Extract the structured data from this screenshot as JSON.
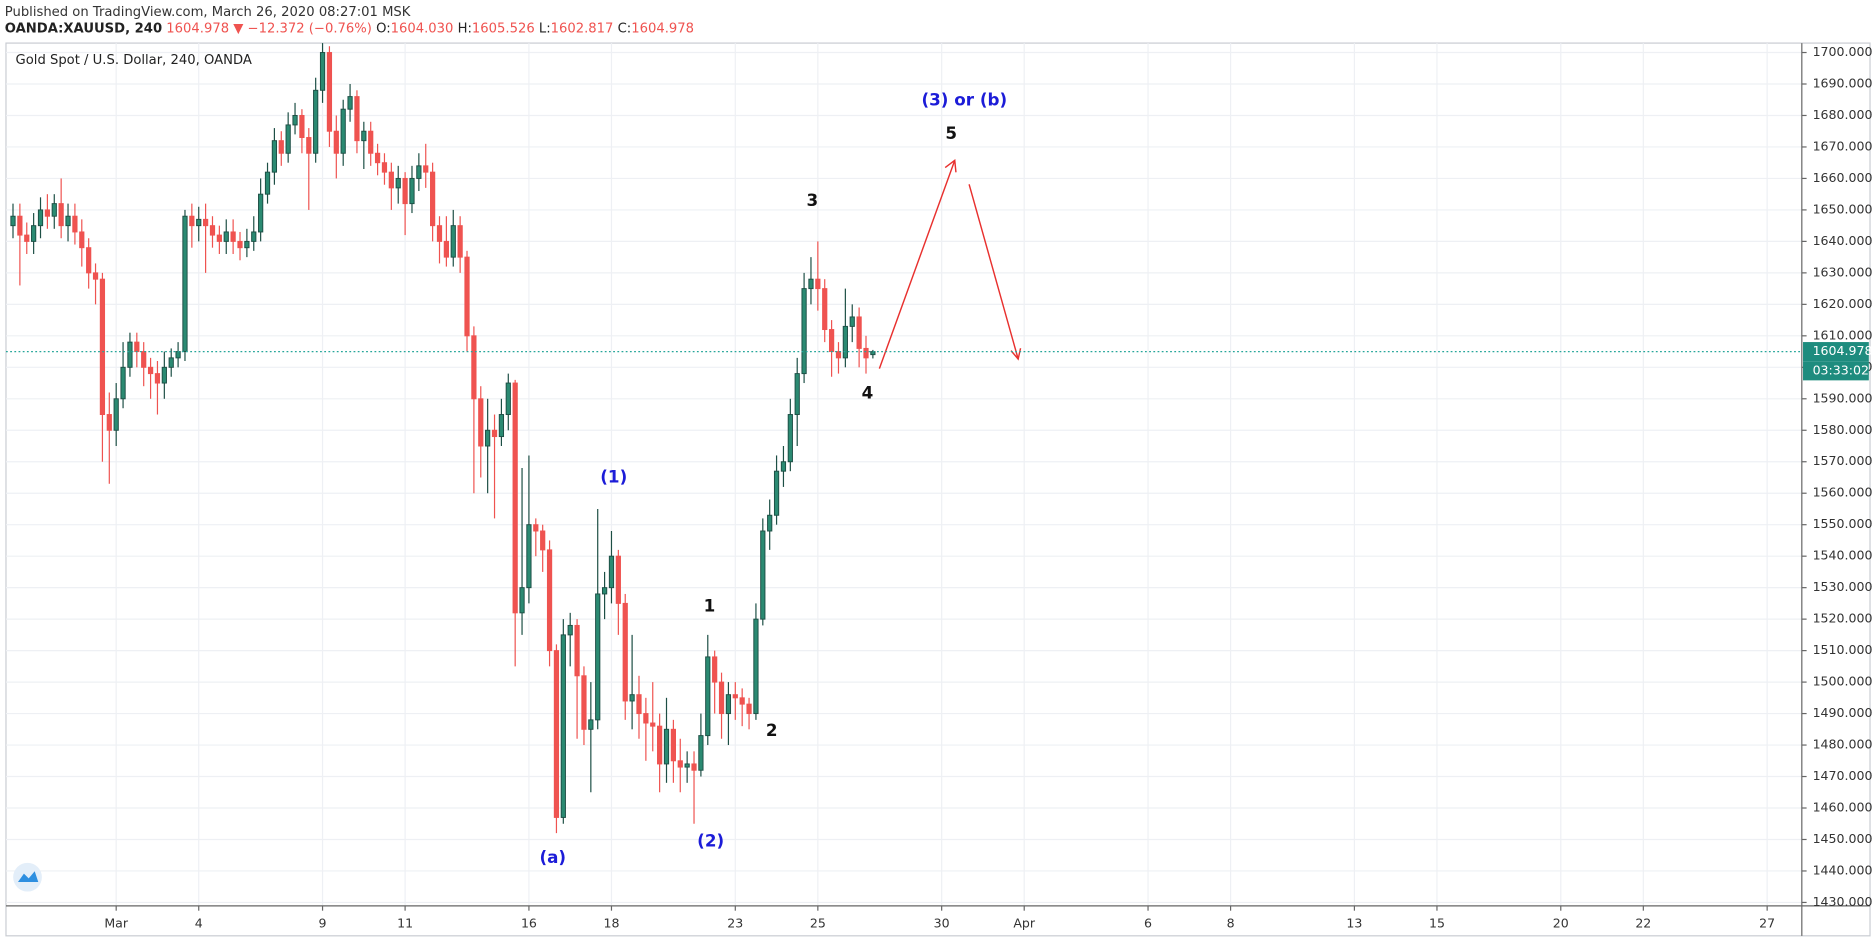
{
  "header": {
    "published": "Published on TradingView.com, March 26, 2020 08:27:01 MSK",
    "symbol": "OANDA:XAUUSD, 240",
    "quote": "1604.978 ▼ −12.372 (−0.76%)",
    "ohlc": [
      {
        "label": "O:",
        "value": "1604.030"
      },
      {
        "label": "H:",
        "value": "1605.526"
      },
      {
        "label": "L:",
        "value": "1602.817"
      },
      {
        "label": "C:",
        "value": "1604.978"
      }
    ]
  },
  "chart_data": {
    "type": "candlestick",
    "title": "Gold Spot / U.S. Dollar, 240, OANDA",
    "up_color": "#2b8a72",
    "up_border": "#1d4f45",
    "down_color": "#ef5350",
    "last_line_color": "#26a69a",
    "grid": true,
    "countdown": "03:33:02",
    "x": [
      -15,
      -14,
      -13,
      -12,
      -11,
      -10,
      -9,
      -8,
      -7,
      -6,
      -5,
      -4,
      -3,
      -2,
      -1,
      0,
      1,
      2,
      3,
      4,
      5,
      6,
      7,
      8,
      9,
      10,
      11,
      12,
      13,
      14,
      15,
      16,
      17,
      18,
      19,
      20,
      21,
      22,
      23,
      24,
      25,
      26,
      27,
      28,
      29,
      30,
      31,
      32,
      33,
      34,
      35,
      36,
      37,
      38,
      39,
      40,
      41,
      42,
      43,
      44,
      45,
      46,
      47,
      48,
      49,
      50,
      51,
      52,
      53,
      54,
      55,
      56,
      57,
      58,
      59,
      60,
      61,
      62,
      63,
      64,
      65,
      66,
      67,
      68,
      69,
      70,
      71,
      72,
      73,
      74,
      75,
      76,
      77,
      78,
      79,
      80,
      81,
      82,
      83,
      84,
      85,
      86,
      87,
      88,
      89,
      90,
      91,
      92,
      93,
      94,
      95,
      96,
      97,
      98,
      99,
      100,
      101,
      102,
      103,
      104,
      105,
      106,
      107,
      108,
      109,
      110
    ],
    "open": [
      1645,
      1648,
      1642,
      1640,
      1645,
      1650,
      1648,
      1652,
      1645,
      1648,
      1643,
      1638,
      1630,
      1628,
      1585,
      1580,
      1590,
      1600,
      1608,
      1605,
      1600,
      1598,
      1595,
      1600,
      1603,
      1605,
      1648,
      1645,
      1647,
      1645,
      1642,
      1640,
      1643,
      1640,
      1638,
      1640,
      1643,
      1655,
      1662,
      1672,
      1668,
      1677,
      1680,
      1673,
      1668,
      1688,
      1700,
      1675,
      1668,
      1682,
      1686,
      1672,
      1675,
      1668,
      1665,
      1662,
      1657,
      1660,
      1652,
      1660,
      1664,
      1662,
      1645,
      1640,
      1635,
      1645,
      1635,
      1610,
      1590,
      1575,
      1580,
      1578,
      1585,
      1595,
      1522,
      1530,
      1550,
      1548,
      1542,
      1510,
      1457,
      1515,
      1518,
      1502,
      1485,
      1488,
      1528,
      1530,
      1540,
      1525,
      1494,
      1496,
      1490,
      1487,
      1486,
      1474,
      1485,
      1475,
      1473,
      1474,
      1472,
      1483,
      1508,
      1500,
      1490,
      1496,
      1495,
      1493,
      1490,
      1520,
      1548,
      1553,
      1567,
      1570,
      1585,
      1598,
      1625,
      1628,
      1625,
      1612,
      1605,
      1603,
      1613,
      1616,
      1606,
      1604.03
    ],
    "high": [
      1652,
      1652,
      1646,
      1649,
      1654,
      1655,
      1655,
      1660,
      1652,
      1652,
      1647,
      1641,
      1633,
      1630,
      1592,
      1595,
      1608,
      1611,
      1611,
      1608,
      1603,
      1602,
      1605,
      1606,
      1608,
      1650,
      1652,
      1651,
      1652,
      1648,
      1645,
      1647,
      1647,
      1643,
      1644,
      1648,
      1660,
      1665,
      1676,
      1675,
      1681,
      1684,
      1682,
      1676,
      1692,
      1703,
      1702,
      1680,
      1685,
      1690,
      1688,
      1678,
      1678,
      1671,
      1668,
      1665,
      1664,
      1662,
      1664,
      1668,
      1671,
      1665,
      1648,
      1648,
      1650,
      1648,
      1637,
      1613,
      1594,
      1590,
      1585,
      1590,
      1598,
      1596,
      1568,
      1572,
      1552,
      1550,
      1545,
      1512,
      1520,
      1522,
      1520,
      1505,
      1500,
      1555,
      1535,
      1548,
      1542,
      1528,
      1515,
      1502,
      1495,
      1500,
      1490,
      1495,
      1488,
      1482,
      1478,
      1478,
      1490,
      1515,
      1510,
      1503,
      1500,
      1500,
      1498,
      1495,
      1525,
      1552,
      1558,
      1572,
      1575,
      1590,
      1603,
      1630,
      1635,
      1640,
      1628,
      1615,
      1608,
      1625,
      1620,
      1619,
      1610,
      1605.526
    ],
    "low": [
      1641,
      1626,
      1636,
      1636,
      1641,
      1644,
      1644,
      1641,
      1640,
      1639,
      1632,
      1625,
      1620,
      1570,
      1563,
      1575,
      1587,
      1597,
      1600,
      1594,
      1590,
      1585,
      1590,
      1597,
      1600,
      1602,
      1638,
      1640,
      1630,
      1638,
      1636,
      1636,
      1636,
      1634,
      1635,
      1637,
      1640,
      1652,
      1658,
      1664,
      1665,
      1674,
      1668,
      1650,
      1665,
      1684,
      1670,
      1660,
      1664,
      1678,
      1668,
      1663,
      1664,
      1661,
      1658,
      1650,
      1652,
      1642,
      1649,
      1656,
      1657,
      1640,
      1633,
      1632,
      1632,
      1630,
      1605,
      1560,
      1565,
      1560,
      1552,
      1575,
      1580,
      1505,
      1515,
      1525,
      1540,
      1535,
      1505,
      1452,
      1455,
      1505,
      1482,
      1480,
      1465,
      1485,
      1520,
      1525,
      1515,
      1488,
      1485,
      1482,
      1475,
      1478,
      1465,
      1468,
      1468,
      1465,
      1468,
      1455,
      1470,
      1480,
      1490,
      1482,
      1480,
      1488,
      1486,
      1485,
      1488,
      1518,
      1542,
      1550,
      1562,
      1567,
      1575,
      1595,
      1620,
      1618,
      1608,
      1597,
      1598,
      1600,
      1608,
      1600,
      1598,
      1602.817
    ],
    "close": [
      1648,
      1642,
      1640,
      1645,
      1650,
      1648,
      1652,
      1645,
      1648,
      1643,
      1638,
      1630,
      1628,
      1585,
      1580,
      1590,
      1600,
      1608,
      1605,
      1600,
      1598,
      1595,
      1600,
      1603,
      1605,
      1648,
      1645,
      1647,
      1645,
      1642,
      1640,
      1643,
      1640,
      1638,
      1640,
      1643,
      1655,
      1662,
      1672,
      1668,
      1677,
      1680,
      1673,
      1668,
      1688,
      1700,
      1675,
      1668,
      1682,
      1686,
      1672,
      1675,
      1668,
      1665,
      1662,
      1657,
      1660,
      1652,
      1660,
      1664,
      1662,
      1645,
      1640,
      1635,
      1645,
      1635,
      1610,
      1590,
      1575,
      1580,
      1578,
      1585,
      1595,
      1522,
      1530,
      1550,
      1548,
      1542,
      1510,
      1457,
      1515,
      1518,
      1502,
      1485,
      1488,
      1528,
      1530,
      1540,
      1525,
      1494,
      1496,
      1490,
      1487,
      1486,
      1474,
      1485,
      1475,
      1473,
      1474,
      1472,
      1483,
      1508,
      1500,
      1490,
      1496,
      1495,
      1493,
      1490,
      1520,
      1548,
      1553,
      1567,
      1570,
      1585,
      1598,
      1625,
      1628,
      1625,
      1612,
      1605,
      1603,
      1613,
      1616,
      1606,
      1603,
      1604.978
    ],
    "xlim": [
      -16.02,
      245.04
    ],
    "xticks": [
      {
        "value": 0,
        "label": "Mar"
      },
      {
        "value": 12,
        "label": "4"
      },
      {
        "value": 30,
        "label": "9"
      },
      {
        "value": 42,
        "label": "11"
      },
      {
        "value": 60,
        "label": "16"
      },
      {
        "value": 72,
        "label": "18"
      },
      {
        "value": 90,
        "label": "23"
      },
      {
        "value": 102,
        "label": "25"
      },
      {
        "value": 120,
        "label": "30"
      },
      {
        "value": 132,
        "label": "Apr"
      },
      {
        "value": 150,
        "label": "6"
      },
      {
        "value": 162,
        "label": "8"
      },
      {
        "value": 180,
        "label": "13"
      },
      {
        "value": 192,
        "label": "15"
      },
      {
        "value": 210,
        "label": "20"
      },
      {
        "value": 222,
        "label": "22"
      },
      {
        "value": 240,
        "label": "27"
      }
    ],
    "ylim": [
      1428.9,
      1703.0
    ],
    "yticks": [
      {
        "value": 1430,
        "label": "1430.000"
      },
      {
        "value": 1440,
        "label": "1440.000"
      },
      {
        "value": 1450,
        "label": "1450.000"
      },
      {
        "value": 1460,
        "label": "1460.000"
      },
      {
        "value": 1470,
        "label": "1470.000"
      },
      {
        "value": 1480,
        "label": "1480.000"
      },
      {
        "value": 1490,
        "label": "1490.000"
      },
      {
        "value": 1500,
        "label": "1500.000"
      },
      {
        "value": 1510,
        "label": "1510.000"
      },
      {
        "value": 1520,
        "label": "1520.000"
      },
      {
        "value": 1530,
        "label": "1530.000"
      },
      {
        "value": 1540,
        "label": "1540.000"
      },
      {
        "value": 1550,
        "label": "1550.000"
      },
      {
        "value": 1560,
        "label": "1560.000"
      },
      {
        "value": 1570,
        "label": "1570.000"
      },
      {
        "value": 1580,
        "label": "1580.000"
      },
      {
        "value": 1590,
        "label": "1590.000"
      },
      {
        "value": 1600,
        "label": "1600.000"
      },
      {
        "value": 1610,
        "label": "1610.000"
      },
      {
        "value": 1620,
        "label": "1620.000"
      },
      {
        "value": 1630,
        "label": "1630.000"
      },
      {
        "value": 1640,
        "label": "1640.000"
      },
      {
        "value": 1650,
        "label": "1650.000"
      },
      {
        "value": 1660,
        "label": "1660.000"
      },
      {
        "value": 1670,
        "label": "1670.000"
      },
      {
        "value": 1680,
        "label": "1680.000"
      },
      {
        "value": 1690,
        "label": "1690.000"
      },
      {
        "value": 1700,
        "label": "1700.000"
      }
    ],
    "annotations": [
      {
        "text": "(3) or (b)",
        "color": "#1c1cd8"
      },
      {
        "text": "5",
        "color": "#111111"
      },
      {
        "text": "3",
        "color": "#111111"
      },
      {
        "text": "4",
        "color": "#111111"
      },
      {
        "text": "(1)",
        "color": "#1c1cd8"
      },
      {
        "text": "1",
        "color": "#111111"
      },
      {
        "text": "2",
        "color": "#111111"
      },
      {
        "text": "(2)",
        "color": "#1c1cd8"
      },
      {
        "text": "(a)",
        "color": "#1c1cd8"
      }
    ]
  }
}
